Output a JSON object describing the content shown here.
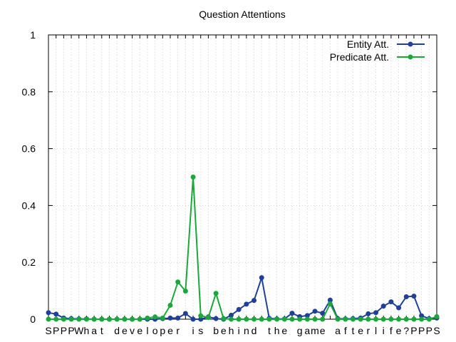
{
  "chart_data": {
    "type": "line",
    "title": "Question Attentions",
    "xlabel": "",
    "ylabel": "",
    "ylim": [
      0,
      1
    ],
    "yticks": [
      "0",
      "0.2",
      "0.4",
      "0.6",
      "0.8",
      "1"
    ],
    "grid": true,
    "legend_position": "top-right",
    "categories": [
      "S",
      "P",
      "P",
      "P",
      "W",
      "h",
      "a",
      "t",
      "",
      "d",
      "e",
      "v",
      "e",
      "l",
      "o",
      "p",
      "e",
      "r",
      "",
      "i",
      "s",
      "",
      "b",
      "e",
      "h",
      "i",
      "n",
      "d",
      "",
      "t",
      "h",
      "e",
      "",
      "g",
      "a",
      "m",
      "e",
      "",
      "a",
      "f",
      "t",
      "e",
      "r",
      "l",
      "i",
      "f",
      "e",
      "?",
      "P",
      "P",
      "P",
      "S"
    ],
    "series": [
      {
        "name": "Entity Att.",
        "color": "#1f3f9a",
        "values": [
          0.023,
          0.018,
          0.004,
          0.002,
          0.001,
          0.001,
          0,
          0,
          0,
          0,
          0,
          0,
          0,
          0,
          0,
          0.002,
          0.004,
          0.004,
          0.02,
          0,
          0,
          0.008,
          0.002,
          0,
          0.014,
          0.034,
          0.053,
          0.066,
          0.146,
          0.003,
          0.001,
          0.001,
          0.021,
          0.009,
          0.013,
          0.028,
          0.021,
          0.067,
          0.002,
          0.001,
          0.002,
          0.004,
          0.019,
          0.023,
          0.046,
          0.061,
          0.04,
          0.079,
          0.081,
          0.012,
          0.002,
          0.004
        ]
      },
      {
        "name": "Predicate Att.",
        "color": "#1aa83a",
        "values": [
          0,
          0,
          0,
          0,
          0,
          0,
          0,
          0,
          0,
          0,
          0,
          0,
          0,
          0.004,
          0.008,
          0.004,
          0.049,
          0.131,
          0.099,
          0.5,
          0.012,
          0.006,
          0.091,
          0.002,
          0,
          0,
          0,
          0,
          0,
          0,
          0,
          0,
          0,
          0,
          0,
          0,
          0,
          0.054,
          0,
          0,
          0,
          0,
          0,
          0,
          0,
          0,
          0,
          0,
          0,
          0,
          0,
          0.009
        ]
      }
    ]
  }
}
